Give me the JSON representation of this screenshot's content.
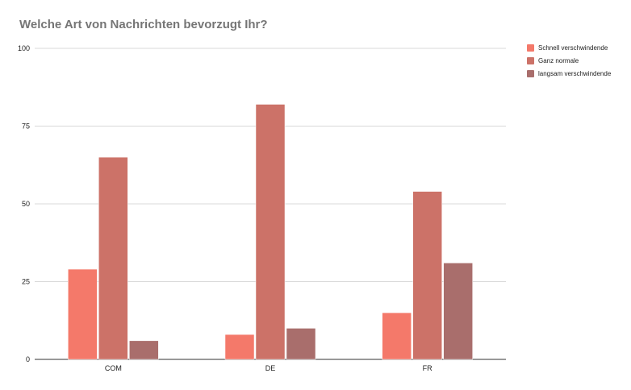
{
  "chart_data": {
    "type": "bar",
    "title": "Welche Art von Nachrichten bevorzugt Ihr?",
    "categories": [
      "COM",
      "DE",
      "FR"
    ],
    "series": [
      {
        "name": "Schnell verschwindende",
        "color": "#f4796a",
        "values": [
          29,
          8,
          15
        ]
      },
      {
        "name": "Ganz normale",
        "color": "#cc7268",
        "values": [
          65,
          82,
          54
        ]
      },
      {
        "name": "langsam verschwindende",
        "color": "#a96e6c",
        "values": [
          6,
          10,
          31
        ]
      }
    ],
    "ylim": [
      0,
      100
    ],
    "yticks": [
      0,
      25,
      50,
      75,
      100
    ],
    "xlabel": "",
    "ylabel": "",
    "grid": true,
    "legend": "right"
  }
}
